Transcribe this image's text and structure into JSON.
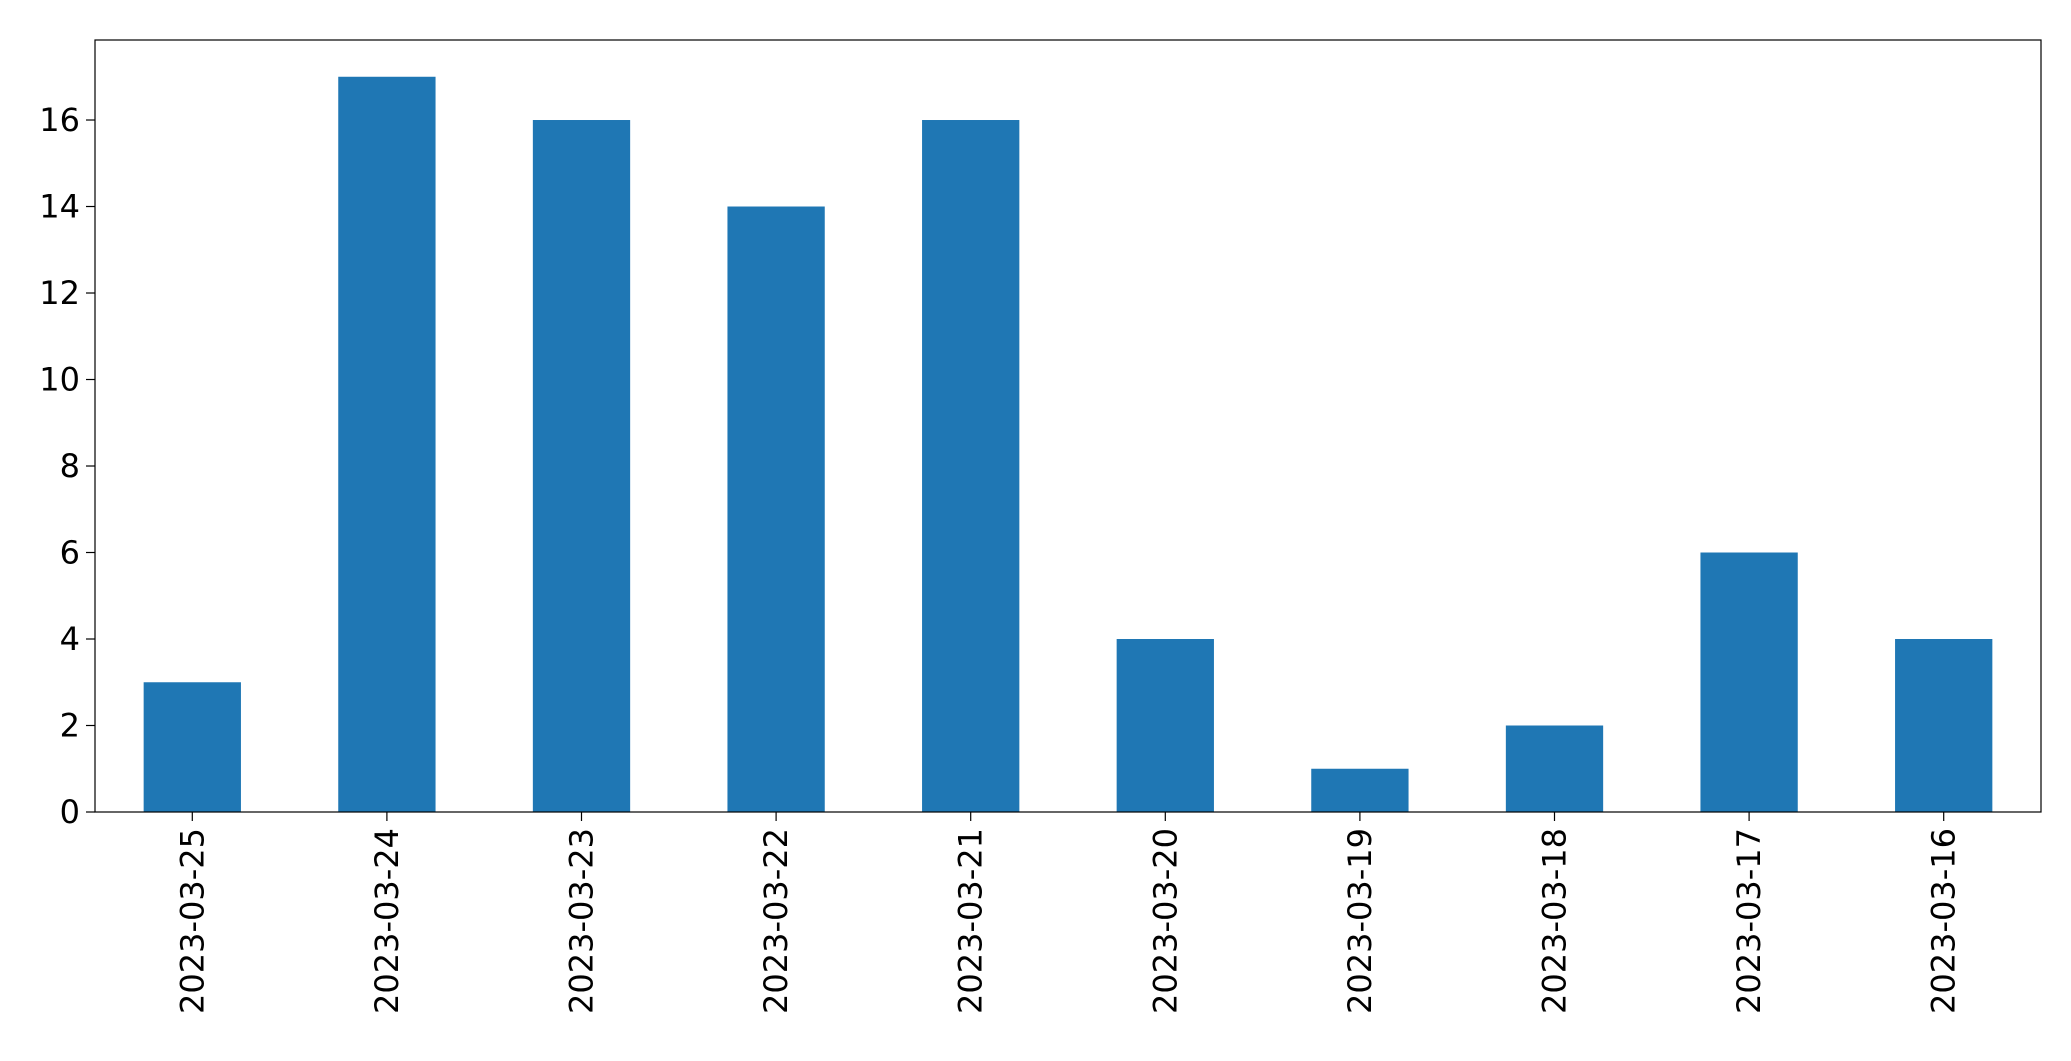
{
  "chart_data": {
    "type": "bar",
    "categories": [
      "2023-03-25",
      "2023-03-24",
      "2023-03-23",
      "2023-03-22",
      "2023-03-21",
      "2023-03-20",
      "2023-03-19",
      "2023-03-18",
      "2023-03-17",
      "2023-03-16"
    ],
    "values": [
      3,
      17,
      16,
      14,
      16,
      4,
      1,
      2,
      6,
      4
    ],
    "title": "",
    "xlabel": "",
    "ylabel": "",
    "ylim": [
      0,
      17.85
    ],
    "yticks": [
      0,
      2,
      4,
      6,
      8,
      10,
      12,
      14,
      16
    ],
    "grid": false,
    "legend": "none",
    "bar_color": "#1f77b4"
  }
}
